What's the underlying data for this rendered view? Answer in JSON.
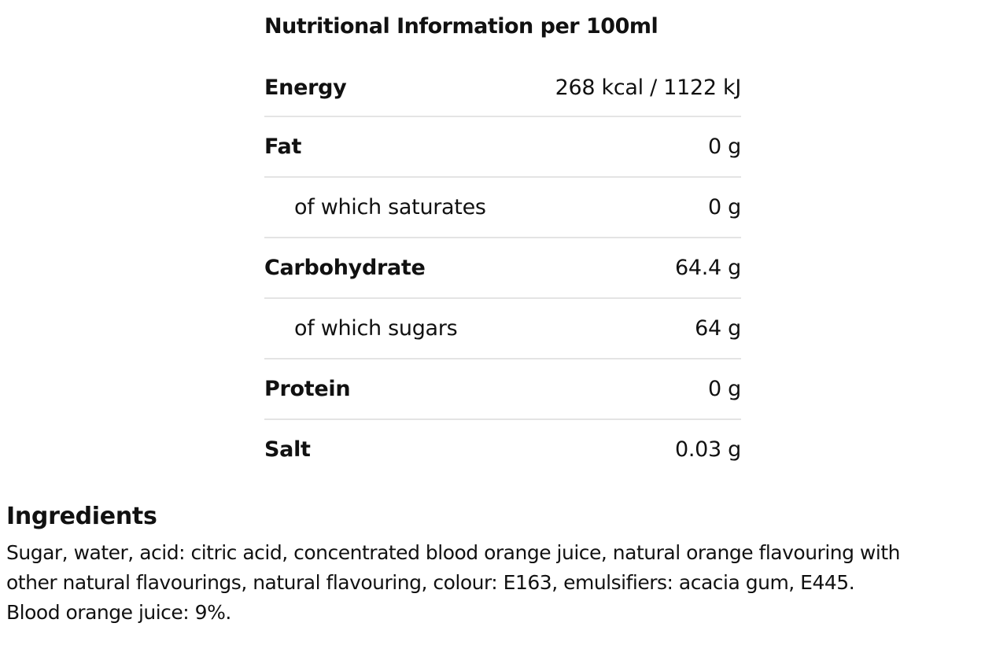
{
  "nutrition": {
    "title": "Nutritional Information per 100ml",
    "rows": [
      {
        "label": "Energy",
        "value": "268 kcal / 1122 kJ"
      },
      {
        "label": "Fat",
        "value": "0 g"
      },
      {
        "label": "of which saturates",
        "value": "0 g"
      },
      {
        "label": "Carbohydrate",
        "value": "64.4 g"
      },
      {
        "label": "of which sugars",
        "value": "64 g"
      },
      {
        "label": "Protein",
        "value": "0 g"
      },
      {
        "label": "Salt",
        "value": "0.03 g"
      }
    ]
  },
  "ingredients": {
    "heading": "Ingredients",
    "line1": "Sugar, water, acid: citric acid, concentrated blood orange juice, natural orange flavouring with",
    "line2": "other natural flavourings, natural flavouring, colour: E163, emulsifiers: acacia gum, E445.",
    "line3": "Blood orange juice: 9%."
  }
}
